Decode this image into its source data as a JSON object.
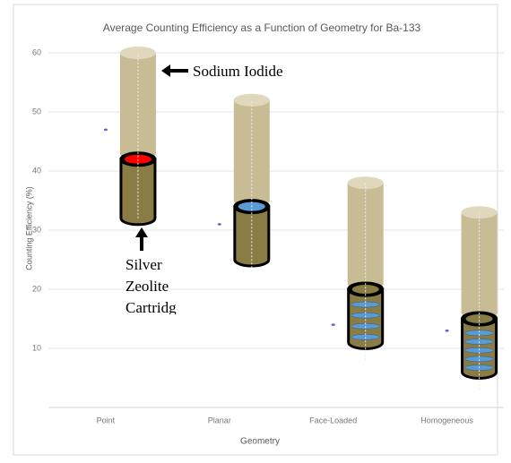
{
  "chart_data": {
    "type": "scatter",
    "title": "Average Counting Efficiency as a Function of Geometry for Ba-133",
    "x_label": "Geometry",
    "y_label": "Counting Efficiency (%)",
    "categories": [
      "Point",
      "Planar",
      "Face-Loaded",
      "Homogeneous"
    ],
    "values": [
      47,
      31,
      14,
      13
    ],
    "color": "#6a5acd",
    "ylim": [
      0,
      60
    ],
    "yticks": [
      10,
      20,
      30,
      40,
      50,
      60
    ],
    "grid": true,
    "whiskers": {
      "low": [
        32,
        23,
        8,
        3
      ],
      "high": [
        60,
        52,
        38,
        33
      ]
    },
    "cylinders": [
      {
        "low": [
          43,
          35,
          21,
          16
        ],
        "high": [
          60,
          52,
          38,
          33
        ],
        "color": "#c8bc94"
      },
      {
        "low": [
          32,
          25,
          11,
          6
        ],
        "high": [
          42,
          34,
          20,
          15
        ],
        "color": "#8a7c45"
      }
    ],
    "cap_colors": [
      "#ff0000",
      "#5b9bd5",
      "#8a7c45",
      "#8a7c45"
    ],
    "discs": [
      0,
      0,
      4,
      5
    ],
    "disc_color": "#5b9bd5",
    "annotations": {
      "sodium_iodide": "Sodium Iodide",
      "cartridge": [
        "Silver",
        "Zeolite",
        "Cartridg"
      ]
    }
  }
}
